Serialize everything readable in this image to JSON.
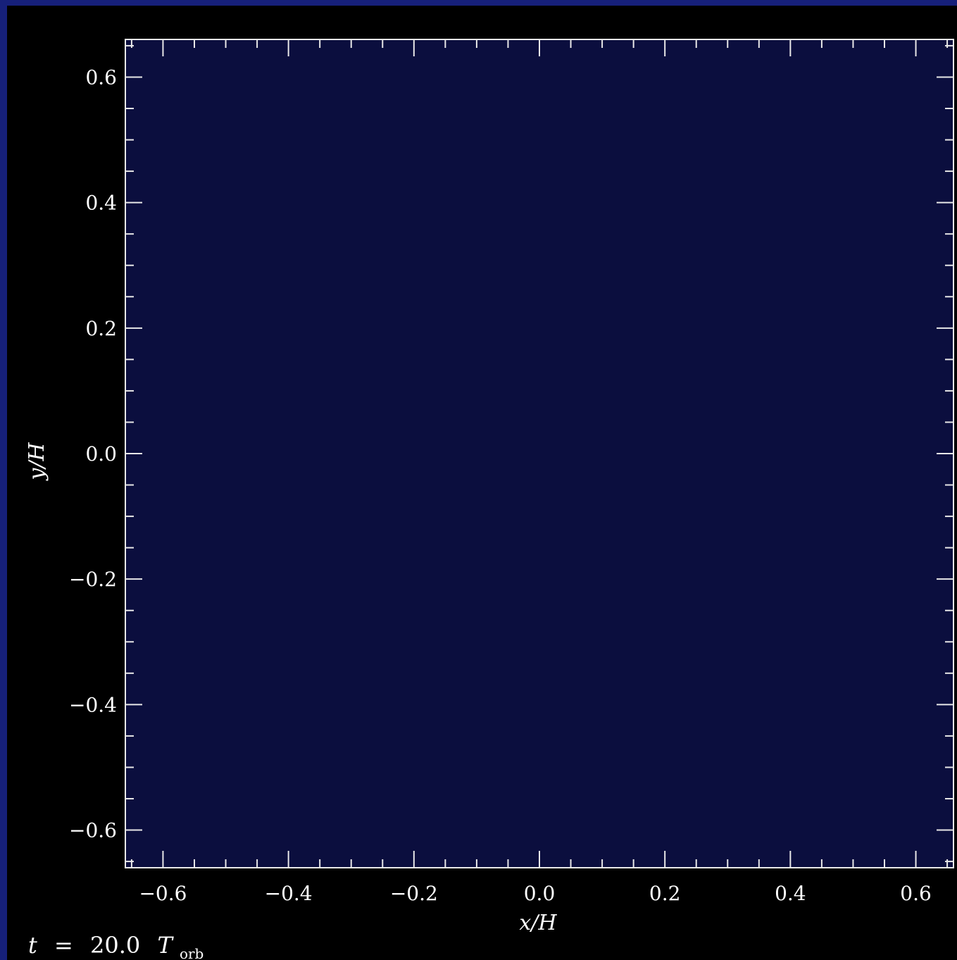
{
  "chart_data": {
    "type": "heatmap",
    "xlabel": "x/H",
    "ylabel": "y/H",
    "xlim": [
      -0.66,
      0.66
    ],
    "ylim": [
      -0.66,
      0.66
    ],
    "xticks": [
      -0.6,
      -0.4,
      -0.2,
      0.0,
      0.2,
      0.4,
      0.6
    ],
    "yticks": [
      -0.6,
      -0.4,
      -0.2,
      0.0,
      0.2,
      0.4,
      0.6
    ],
    "xtick_labels": [
      "−0.6",
      "−0.4",
      "−0.2",
      "0.0",
      "0.2",
      "0.4",
      "0.6"
    ],
    "ytick_labels": [
      "−0.6",
      "−0.4",
      "−0.2",
      "0.0",
      "0.2",
      "0.4",
      "0.6"
    ],
    "minor_tick_step": 0.05,
    "field_color": "#0b0e3e",
    "annotation": {
      "prefix": "t",
      "equals": "=",
      "value": "20.0",
      "unit": "T",
      "unit_subscript": "orb"
    }
  },
  "colors": {
    "outer_border": "#16207a",
    "background": "#000000",
    "axis": "#e8e8e8",
    "text": "#ffffff"
  }
}
